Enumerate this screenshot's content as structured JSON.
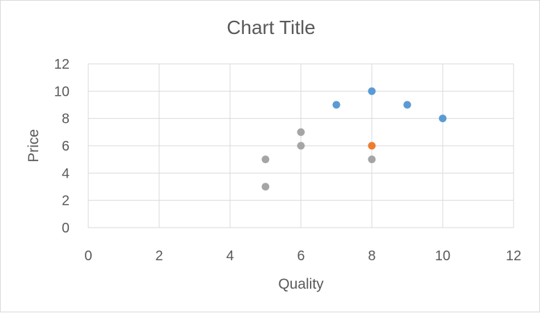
{
  "chart_data": {
    "type": "scatter",
    "title": "Chart Title",
    "xlabel": "Quality",
    "ylabel": "Price",
    "xlim": [
      0,
      12
    ],
    "ylim": [
      0,
      12
    ],
    "xticks": [
      "0",
      "2",
      "4",
      "6",
      "8",
      "10",
      "12"
    ],
    "yticks": [
      "0",
      "2",
      "4",
      "6",
      "8",
      "10",
      "12"
    ],
    "grid": true,
    "series": [
      {
        "color": "#5b9bd5",
        "points": [
          [
            7,
            9
          ],
          [
            8,
            10
          ],
          [
            9,
            9
          ],
          [
            10,
            8
          ]
        ]
      },
      {
        "color": "#ed7d31",
        "points": [
          [
            8,
            6
          ]
        ]
      },
      {
        "color": "#a5a5a5",
        "points": [
          [
            5,
            5
          ],
          [
            5,
            3
          ],
          [
            6,
            7
          ],
          [
            6,
            6
          ],
          [
            8,
            5
          ]
        ]
      }
    ]
  }
}
